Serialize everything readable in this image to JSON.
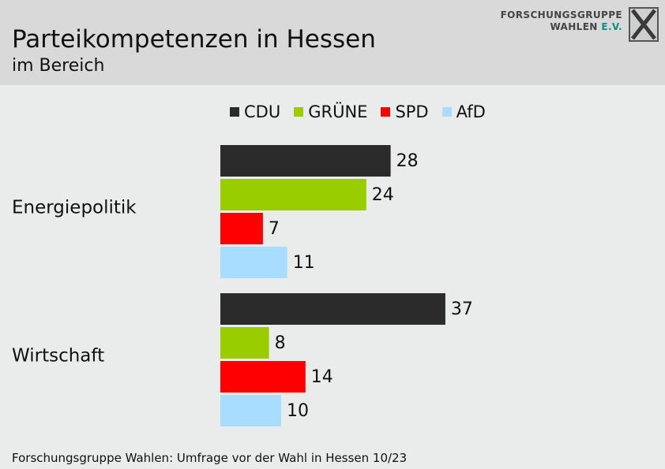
{
  "header": {
    "title": "Parteikompetenzen in Hessen",
    "subtitle": "im Bereich"
  },
  "logo": {
    "line1": "FORSCHUNGSGRUPPE",
    "line2_main": "WAHLEN",
    "line2_accent": "E.V."
  },
  "footer": {
    "source": "Forschungsgruppe Wahlen: Umfrage vor der Wahl in Hessen 10/23"
  },
  "colors": {
    "CDU": "#2b2b2b",
    "GRÜNE": "#9acd00",
    "SPD": "#ff0000",
    "AfD": "#a8ddff",
    "header_bg": "#d9d9d9",
    "background": "#e9eceb",
    "logo_accent": "#0b8f80"
  },
  "chart_data": {
    "type": "bar",
    "orientation": "horizontal",
    "title": "Parteikompetenzen in Hessen",
    "subtitle": "im Bereich",
    "categories": [
      "Energiepolitik",
      "Wirtschaft"
    ],
    "series": [
      {
        "name": "CDU",
        "values": [
          28,
          37
        ]
      },
      {
        "name": "GRÜNE",
        "values": [
          24,
          8
        ]
      },
      {
        "name": "SPD",
        "values": [
          7,
          14
        ]
      },
      {
        "name": "AfD",
        "values": [
          11,
          10
        ]
      }
    ],
    "unit": "%",
    "legend_position": "top",
    "grid": false,
    "xlim": [
      0,
      40
    ]
  }
}
